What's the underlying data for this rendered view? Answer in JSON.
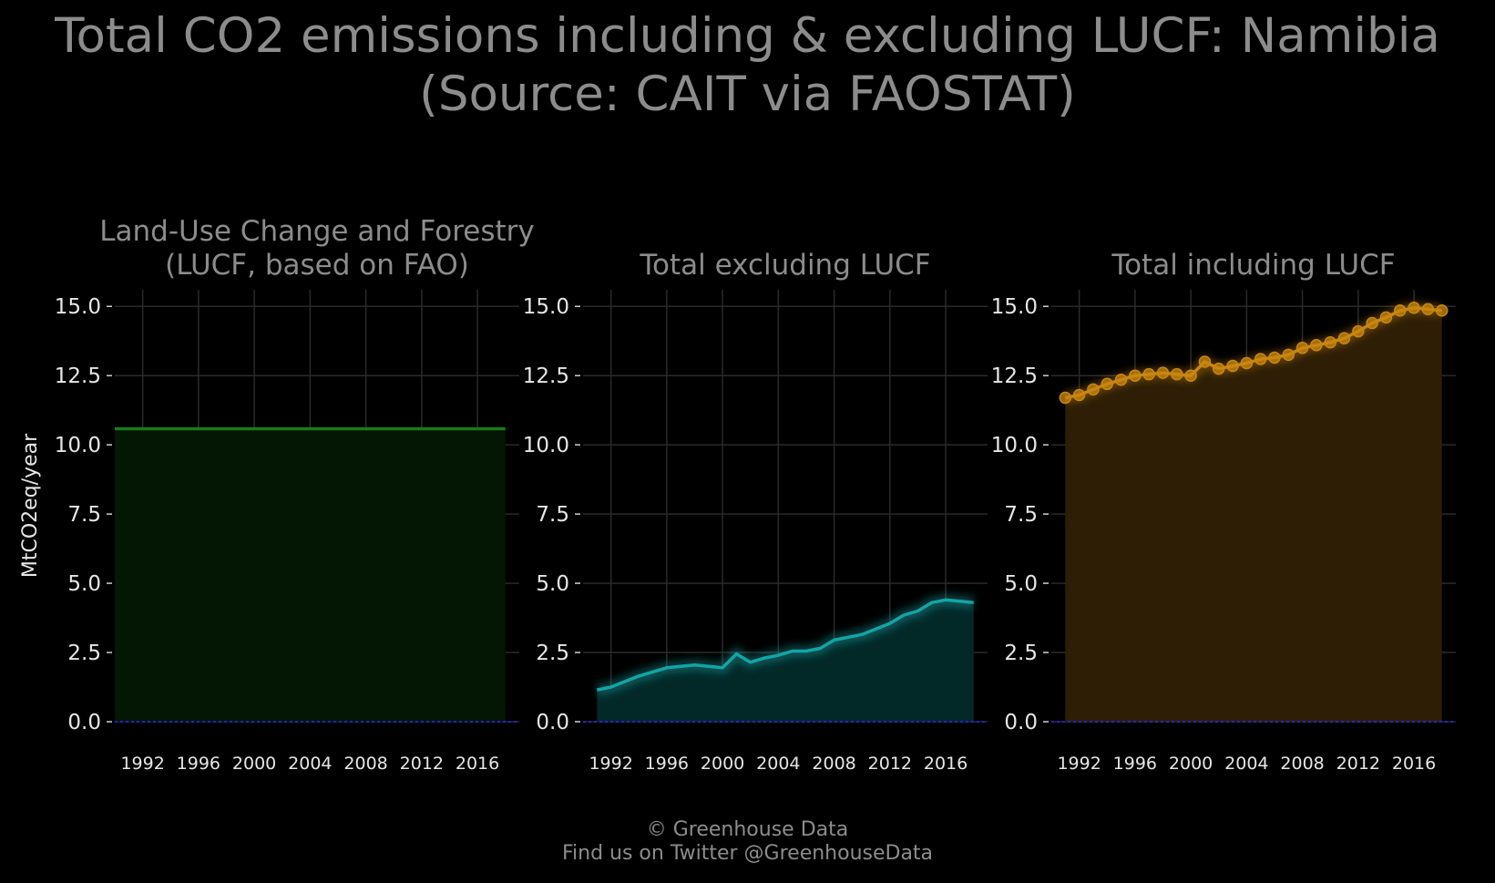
{
  "title": "Total CO2 emissions including & excluding LUCF: Namibia\n(Source: CAIT via FAOSTAT)",
  "footer": {
    "line1": "© Greenhouse Data",
    "line2": "Find us on Twitter @GreenhouseData"
  },
  "colors": {
    "background": "#000000",
    "lucf": "#1a7a1a",
    "excl": "#12a5a5",
    "incl": "#c8860f",
    "zero_line": "#2222cc",
    "grid": "#2a2a2a",
    "text": "#8c8c8c"
  },
  "chart_data": [
    {
      "type": "area",
      "title": "Land-Use Change and Forestry\n(LUCF, based on FAO)",
      "ylabel": "MtCO2eq/year",
      "xlim": [
        1990,
        2019
      ],
      "ylim": [
        0,
        15.6
      ],
      "x_ticks": [
        1992,
        1996,
        2000,
        2004,
        2008,
        2012,
        2016
      ],
      "y_ticks": [
        "0.0",
        "2.5",
        "5.0",
        "7.5",
        "10.0",
        "12.5",
        "15.0"
      ],
      "markers": false,
      "color": "#1a7a1a",
      "fill": "#041604",
      "series": [
        {
          "x": [
            1990,
            1991,
            1992,
            1993,
            1994,
            1995,
            1996,
            1997,
            1998,
            1999,
            2000,
            2001,
            2002,
            2003,
            2004,
            2005,
            2006,
            2007,
            2008,
            2009,
            2010,
            2011,
            2012,
            2013,
            2014,
            2015,
            2016,
            2017,
            2018
          ],
          "y": [
            10.58,
            10.58,
            10.58,
            10.58,
            10.58,
            10.58,
            10.58,
            10.58,
            10.58,
            10.58,
            10.58,
            10.58,
            10.58,
            10.58,
            10.58,
            10.58,
            10.58,
            10.58,
            10.58,
            10.58,
            10.58,
            10.58,
            10.58,
            10.58,
            10.58,
            10.58,
            10.58,
            10.58,
            10.58
          ]
        }
      ]
    },
    {
      "type": "area",
      "title": "Total excluding LUCF",
      "ylabel": "",
      "xlim": [
        1990,
        2019
      ],
      "ylim": [
        0,
        15.6
      ],
      "x_ticks": [
        1992,
        1996,
        2000,
        2004,
        2008,
        2012,
        2016
      ],
      "y_ticks": [
        "0.0",
        "2.5",
        "5.0",
        "7.5",
        "10.0",
        "12.5",
        "15.0"
      ],
      "markers": false,
      "color": "#12a5a5",
      "fill": "#032828",
      "series": [
        {
          "x": [
            1991,
            1992,
            1993,
            1994,
            1995,
            1996,
            1997,
            1998,
            1999,
            2000,
            2001,
            2002,
            2003,
            2004,
            2005,
            2006,
            2007,
            2008,
            2009,
            2010,
            2011,
            2012,
            2013,
            2014,
            2015,
            2016,
            2017,
            2018
          ],
          "y": [
            1.15,
            1.25,
            1.45,
            1.65,
            1.8,
            1.95,
            2.0,
            2.05,
            2.0,
            1.95,
            2.45,
            2.15,
            2.3,
            2.4,
            2.55,
            2.55,
            2.65,
            2.95,
            3.05,
            3.15,
            3.35,
            3.55,
            3.85,
            4.0,
            4.3,
            4.4,
            4.35,
            4.3
          ]
        }
      ]
    },
    {
      "type": "area",
      "title": "Total including LUCF",
      "ylabel": "",
      "xlim": [
        1990,
        2019
      ],
      "ylim": [
        0,
        15.6
      ],
      "x_ticks": [
        1992,
        1996,
        2000,
        2004,
        2008,
        2012,
        2016
      ],
      "y_ticks": [
        "0.0",
        "2.5",
        "5.0",
        "7.5",
        "10.0",
        "12.5",
        "15.0"
      ],
      "markers": true,
      "color": "#c8860f",
      "fill": "#2e1e05",
      "series": [
        {
          "x": [
            1991,
            1992,
            1993,
            1994,
            1995,
            1996,
            1997,
            1998,
            1999,
            2000,
            2001,
            2002,
            2003,
            2004,
            2005,
            2006,
            2007,
            2008,
            2009,
            2010,
            2011,
            2012,
            2013,
            2014,
            2015,
            2016,
            2017,
            2018
          ],
          "y": [
            11.7,
            11.8,
            12.0,
            12.2,
            12.35,
            12.5,
            12.55,
            12.6,
            12.55,
            12.5,
            13.0,
            12.75,
            12.85,
            12.95,
            13.1,
            13.15,
            13.25,
            13.5,
            13.6,
            13.7,
            13.85,
            14.1,
            14.4,
            14.6,
            14.85,
            14.95,
            14.9,
            14.85
          ]
        }
      ]
    }
  ]
}
